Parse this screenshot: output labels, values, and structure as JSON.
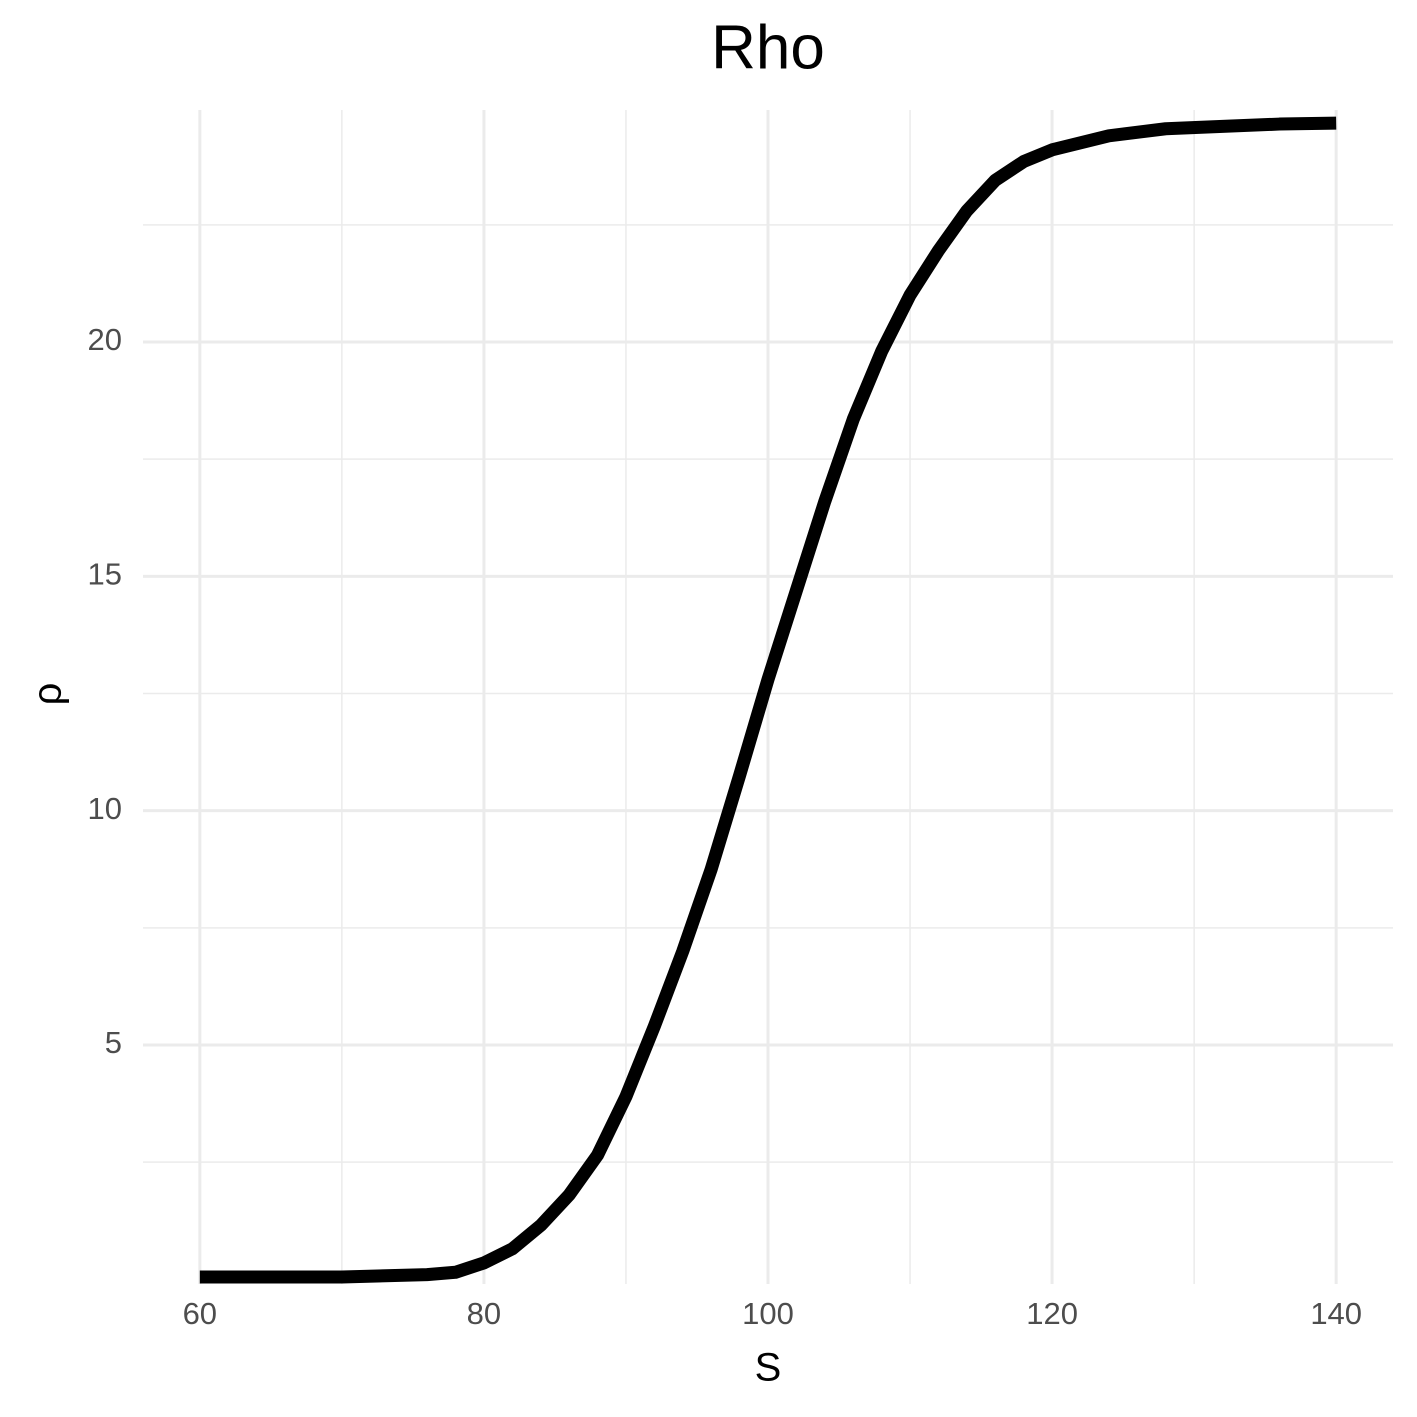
{
  "chart_data": {
    "type": "line",
    "title": "Rho",
    "x_label": "S",
    "y_label": "ρ",
    "x": [
      60,
      70,
      76,
      78,
      80,
      82,
      84,
      86,
      88,
      90,
      92,
      94,
      96,
      98,
      100,
      102,
      104,
      106,
      108,
      110,
      112,
      114,
      116,
      118,
      120,
      124,
      128,
      132,
      136,
      140
    ],
    "series": [
      {
        "color": "#000000",
        "values": [
          0.05,
          0.05,
          0.1,
          0.15,
          0.35,
          0.65,
          1.15,
          1.8,
          2.65,
          3.9,
          5.4,
          7.0,
          8.75,
          10.75,
          12.8,
          14.7,
          16.6,
          18.35,
          19.8,
          21.0,
          21.95,
          22.8,
          23.45,
          23.85,
          24.1,
          24.4,
          24.55,
          24.6,
          24.65,
          24.67
        ]
      }
    ],
    "xlim": [
      56,
      144
    ],
    "ylim": [
      -0.1,
      24.95
    ],
    "xticks": [
      60,
      80,
      100,
      120,
      140
    ],
    "yticks": [
      5,
      10,
      15,
      20
    ],
    "xminor": [
      70,
      90,
      110,
      130
    ],
    "yminor": [
      2.5,
      7.5,
      12.5,
      17.5,
      22.5
    ],
    "grid": true
  }
}
